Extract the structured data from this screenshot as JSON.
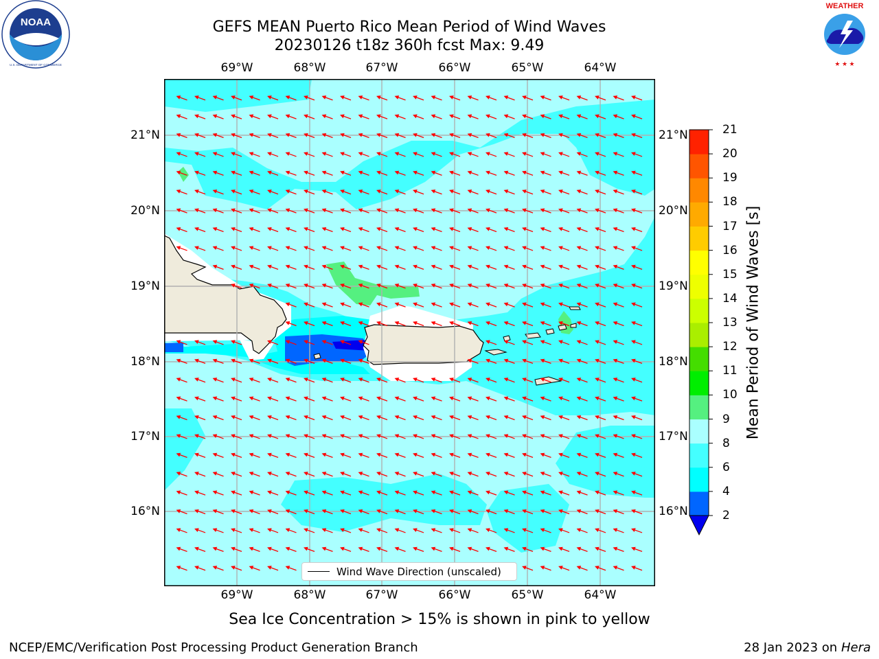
{
  "title": {
    "line1": "GEFS MEAN Puerto Rico Mean Period of Wind Waves",
    "line2": "20230126 t18z 360h fcst   Max: 9.49"
  },
  "logos": {
    "left": {
      "name": "NOAA",
      "ring_text": "NATIONAL OCEANIC AND ATMOSPHERIC ADMINISTRATION",
      "bottom_text": "U.S. DEPARTMENT OF COMMERCE"
    },
    "right": {
      "name": "NATIONAL WEATHER SERVICE"
    }
  },
  "map": {
    "lon_labels": [
      "69°W",
      "68°W",
      "67°W",
      "66°W",
      "65°W",
      "64°W"
    ],
    "lat_labels": [
      "21°N",
      "20°N",
      "19°N",
      "18°N",
      "17°N",
      "16°N"
    ],
    "land_color": "#efebdc",
    "arrow_color": "#ff0000",
    "wind_wave_direction": "east-northeast (arrows point west-southwest)"
  },
  "colorbar": {
    "label": "Mean Period of Wind Waves [s]",
    "ticks": [
      "2",
      "4",
      "6",
      "8",
      "9",
      "10",
      "11",
      "12",
      "13",
      "14",
      "15",
      "16",
      "17",
      "18",
      "19",
      "20",
      "21"
    ],
    "colors": [
      "#0066ff",
      "#00ffff",
      "#44ffff",
      "#aaffff",
      "#55f080",
      "#00ee00",
      "#44dd00",
      "#aaee00",
      "#ccff00",
      "#eeff00",
      "#ffff00",
      "#ffcc00",
      "#ffaa00",
      "#ff8800",
      "#ff5500",
      "#ff2200"
    ],
    "under_color": "#0000ee"
  },
  "legend": {
    "label": "Wind Wave Direction (unscaled)"
  },
  "subtitle": "Sea Ice Concentration > 15% is shown in pink to yellow",
  "footer": {
    "left": "NCEP/EMC/Verification Post Processing Product Generation Branch",
    "right_prefix": "28 Jan 2023 on ",
    "right_host": "Hera"
  }
}
